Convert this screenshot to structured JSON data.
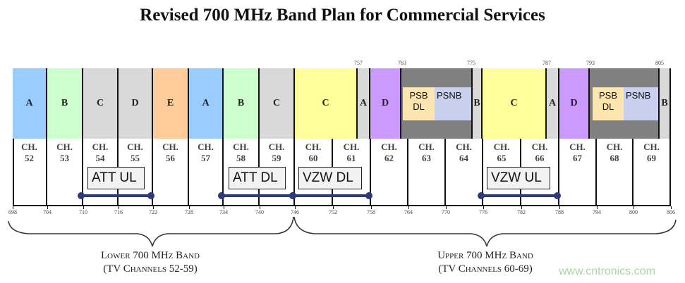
{
  "title": "Revised 700 MHz Band Plan for Commercial Services",
  "colors": {
    "blue": "#99ccff",
    "green": "#ccffcc",
    "grey": "#d9d9d9",
    "orange": "#ffcc99",
    "yellow": "#ffff99",
    "purple": "#cc99ff",
    "dark": "#808080",
    "psb": "#fde5b0",
    "psnb": "#c9d0ee",
    "line": "#2e3a7a"
  },
  "blocks": [
    {
      "label": "A",
      "color": "#99ccff"
    },
    {
      "label": "B",
      "color": "#ccffcc"
    },
    {
      "label": "C",
      "color": "#d9d9d9"
    },
    {
      "label": "D",
      "color": "#d9d9d9"
    },
    {
      "label": "E",
      "color": "#ffcc99"
    },
    {
      "label": "A",
      "color": "#99ccff"
    },
    {
      "label": "B",
      "color": "#ccffcc"
    },
    {
      "label": "C",
      "color": "#d9d9d9"
    },
    {
      "label": "C",
      "color": "#ffff99"
    },
    {
      "label": "A",
      "color": "#d9d9d9"
    },
    {
      "label": "D",
      "color": "#cc99ff"
    },
    {
      "label": "",
      "color": "#808080"
    },
    {
      "label": "B",
      "color": "#d9d9d9"
    },
    {
      "label": "C",
      "color": "#ffff99"
    },
    {
      "label": "A",
      "color": "#d9d9d9"
    },
    {
      "label": "D",
      "color": "#cc99ff"
    },
    {
      "label": "",
      "color": "#808080"
    },
    {
      "label": "B",
      "color": "#d9d9d9"
    }
  ],
  "public_safety": [
    {
      "psb": "PSB\nDL",
      "psnb": "PSNB"
    },
    {
      "psb": "PSB\nDL",
      "psnb": "PSNB"
    }
  ],
  "channels": [
    "CH.\n52",
    "CH.\n53",
    "CH.\n54",
    "CH.\n55",
    "CH.\n56",
    "CH.\n57",
    "CH.\n58",
    "CH.\n59",
    "CH.\n60",
    "CH.\n61",
    "CH.\n62",
    "CH.\n63",
    "CH.\n64",
    "CH.\n65",
    "CH.\n66",
    "CH.\n67",
    "CH.\n68",
    "CH.\n69"
  ],
  "bottom_freqs": [
    "698",
    "704",
    "710",
    "716",
    "722",
    "728",
    "734",
    "740",
    "746",
    "752",
    "758",
    "764",
    "770",
    "776",
    "782",
    "788",
    "794",
    "800",
    "806"
  ],
  "top_freqs": [
    "757",
    "763",
    "775",
    "787",
    "793",
    "805"
  ],
  "allocations": [
    {
      "label": "ATT UL",
      "from_mhz": 710,
      "to_mhz": 722
    },
    {
      "label": "ATT DL",
      "from_mhz": 734,
      "to_mhz": 746
    },
    {
      "label": "VZW DL",
      "from_mhz": 746,
      "to_mhz": 758
    },
    {
      "label": "VZW UL",
      "from_mhz": 776,
      "to_mhz": 788
    }
  ],
  "bands": [
    {
      "name": "Lower 700 MHz Band",
      "channels": "(TV Channels 52-59)"
    },
    {
      "name": "Upper 700 MHz Band",
      "channels": "(TV Channels 60-69)"
    }
  ],
  "watermark": "www.cntronics.com"
}
